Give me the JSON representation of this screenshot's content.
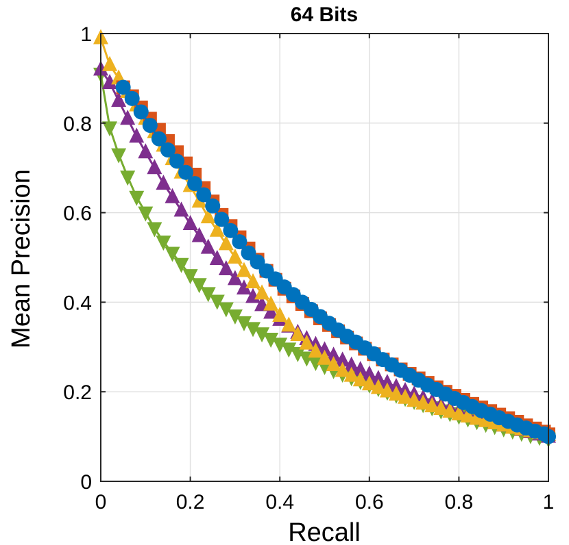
{
  "chart_data": {
    "type": "line",
    "title": "64 Bits",
    "xlabel": "Recall",
    "ylabel": "Mean Precision",
    "xlim": [
      0,
      1
    ],
    "ylim": [
      0,
      1
    ],
    "grid": true,
    "x_ticks": [
      "0",
      "0.2",
      "0.4",
      "0.6",
      "0.8",
      "1"
    ],
    "y_ticks": [
      "0",
      "0.2",
      "0.4",
      "0.6",
      "0.8",
      "1"
    ],
    "series": [
      {
        "name": "series-green",
        "color": "#77AC30",
        "marker": "triangle-down",
        "x": [
          0,
          0.02,
          0.04,
          0.06,
          0.08,
          0.1,
          0.12,
          0.14,
          0.16,
          0.18,
          0.2,
          0.22,
          0.24,
          0.26,
          0.28,
          0.3,
          0.32,
          0.34,
          0.36,
          0.38,
          0.4,
          0.42,
          0.44,
          0.46,
          0.48,
          0.5,
          0.52,
          0.54,
          0.56,
          0.58,
          0.6,
          0.62,
          0.64,
          0.66,
          0.68,
          0.7,
          0.72,
          0.74,
          0.76,
          0.78,
          0.8,
          0.82,
          0.84,
          0.86,
          0.88,
          0.9,
          0.92,
          0.94,
          0.96,
          0.98,
          1.0
        ],
        "y": [
          0.91,
          0.79,
          0.73,
          0.68,
          0.635,
          0.6,
          0.565,
          0.535,
          0.51,
          0.485,
          0.46,
          0.44,
          0.42,
          0.403,
          0.386,
          0.37,
          0.355,
          0.342,
          0.33,
          0.318,
          0.307,
          0.296,
          0.286,
          0.276,
          0.266,
          0.257,
          0.248,
          0.24,
          0.232,
          0.224,
          0.216,
          0.208,
          0.2,
          0.193,
          0.186,
          0.179,
          0.172,
          0.165,
          0.158,
          0.152,
          0.146,
          0.14,
          0.134,
          0.128,
          0.123,
          0.118,
          0.113,
          0.108,
          0.103,
          0.099,
          0.095
        ]
      },
      {
        "name": "series-purple",
        "color": "#7E2F8E",
        "marker": "triangle-up",
        "x": [
          0,
          0.02,
          0.04,
          0.06,
          0.08,
          0.1,
          0.12,
          0.14,
          0.16,
          0.18,
          0.2,
          0.22,
          0.24,
          0.26,
          0.28,
          0.3,
          0.32,
          0.34,
          0.36,
          0.38,
          0.4,
          0.42,
          0.44,
          0.46,
          0.48,
          0.5,
          0.52,
          0.54,
          0.56,
          0.58,
          0.6,
          0.62,
          0.64,
          0.66,
          0.68,
          0.7,
          0.72,
          0.74,
          0.76,
          0.78,
          0.8,
          0.82,
          0.84,
          0.86,
          0.88,
          0.9,
          0.92,
          0.94,
          0.96,
          0.98,
          1.0
        ],
        "y": [
          0.92,
          0.89,
          0.85,
          0.81,
          0.77,
          0.735,
          0.7,
          0.665,
          0.635,
          0.605,
          0.575,
          0.548,
          0.522,
          0.497,
          0.474,
          0.452,
          0.431,
          0.412,
          0.394,
          0.377,
          0.361,
          0.346,
          0.332,
          0.318,
          0.305,
          0.293,
          0.281,
          0.27,
          0.259,
          0.249,
          0.239,
          0.229,
          0.22,
          0.211,
          0.202,
          0.194,
          0.186,
          0.178,
          0.17,
          0.163,
          0.156,
          0.149,
          0.143,
          0.137,
          0.131,
          0.125,
          0.12,
          0.115,
          0.11,
          0.105,
          0.1
        ]
      },
      {
        "name": "series-yellow",
        "color": "#EDB120",
        "marker": "triangle-up",
        "x": [
          0,
          0.02,
          0.04,
          0.06,
          0.08,
          0.1,
          0.12,
          0.14,
          0.16,
          0.18,
          0.2,
          0.22,
          0.24,
          0.26,
          0.28,
          0.3,
          0.32,
          0.34,
          0.36,
          0.38,
          0.4,
          0.42,
          0.44,
          0.46,
          0.48,
          0.5,
          0.52,
          0.54,
          0.56,
          0.58,
          0.6,
          0.62,
          0.64,
          0.66,
          0.68,
          0.7,
          0.72,
          0.74,
          0.76,
          0.78,
          0.8,
          0.82,
          0.84,
          0.86,
          0.88,
          0.9,
          0.92,
          0.94,
          0.96,
          0.98,
          1.0
        ],
        "y": [
          0.99,
          0.93,
          0.9,
          0.87,
          0.84,
          0.81,
          0.78,
          0.75,
          0.72,
          0.69,
          0.66,
          0.625,
          0.59,
          0.56,
          0.53,
          0.5,
          0.47,
          0.445,
          0.42,
          0.395,
          0.37,
          0.348,
          0.327,
          0.308,
          0.29,
          0.274,
          0.26,
          0.247,
          0.236,
          0.226,
          0.217,
          0.209,
          0.201,
          0.194,
          0.187,
          0.18,
          0.174,
          0.168,
          0.162,
          0.156,
          0.15,
          0.145,
          0.14,
          0.135,
          0.13,
          0.125,
          0.12,
          0.116,
          0.112,
          0.108,
          0.104
        ]
      },
      {
        "name": "series-orange",
        "color": "#D95319",
        "marker": "square",
        "x": [
          0.05,
          0.07,
          0.09,
          0.11,
          0.13,
          0.15,
          0.17,
          0.19,
          0.21,
          0.23,
          0.25,
          0.27,
          0.29,
          0.31,
          0.33,
          0.35,
          0.37,
          0.39,
          0.41,
          0.43,
          0.45,
          0.47,
          0.49,
          0.51,
          0.53,
          0.55,
          0.57,
          0.59,
          0.61,
          0.63,
          0.65,
          0.67,
          0.69,
          0.71,
          0.73,
          0.75,
          0.77,
          0.79,
          0.81,
          0.83,
          0.85,
          0.87,
          0.89,
          0.91,
          0.93,
          0.95,
          0.97,
          0.99,
          1.0
        ],
        "y": [
          0.88,
          0.86,
          0.835,
          0.81,
          0.785,
          0.76,
          0.735,
          0.71,
          0.685,
          0.655,
          0.625,
          0.595,
          0.57,
          0.545,
          0.52,
          0.495,
          0.47,
          0.45,
          0.43,
          0.413,
          0.396,
          0.38,
          0.364,
          0.349,
          0.335,
          0.321,
          0.308,
          0.296,
          0.284,
          0.272,
          0.261,
          0.25,
          0.24,
          0.23,
          0.22,
          0.21,
          0.2,
          0.191,
          0.182,
          0.173,
          0.165,
          0.157,
          0.149,
          0.141,
          0.133,
          0.125,
          0.118,
          0.111,
          0.105
        ]
      },
      {
        "name": "series-blue",
        "color": "#0072BD",
        "marker": "circle",
        "x": [
          0.05,
          0.07,
          0.09,
          0.11,
          0.13,
          0.15,
          0.17,
          0.19,
          0.21,
          0.23,
          0.25,
          0.27,
          0.29,
          0.31,
          0.33,
          0.35,
          0.37,
          0.39,
          0.41,
          0.43,
          0.45,
          0.47,
          0.49,
          0.51,
          0.53,
          0.55,
          0.57,
          0.59,
          0.61,
          0.63,
          0.65,
          0.67,
          0.69,
          0.71,
          0.73,
          0.75,
          0.77,
          0.79,
          0.81,
          0.83,
          0.85,
          0.87,
          0.89,
          0.91,
          0.93,
          0.95,
          0.97,
          0.99,
          1.0
        ],
        "y": [
          0.88,
          0.855,
          0.825,
          0.795,
          0.765,
          0.74,
          0.715,
          0.69,
          0.665,
          0.64,
          0.615,
          0.585,
          0.56,
          0.535,
          0.51,
          0.49,
          0.47,
          0.452,
          0.434,
          0.417,
          0.4,
          0.384,
          0.368,
          0.353,
          0.338,
          0.324,
          0.311,
          0.298,
          0.285,
          0.272,
          0.26,
          0.248,
          0.237,
          0.226,
          0.215,
          0.205,
          0.195,
          0.185,
          0.176,
          0.167,
          0.158,
          0.15,
          0.142,
          0.134,
          0.126,
          0.119,
          0.112,
          0.106,
          0.1
        ]
      }
    ]
  }
}
